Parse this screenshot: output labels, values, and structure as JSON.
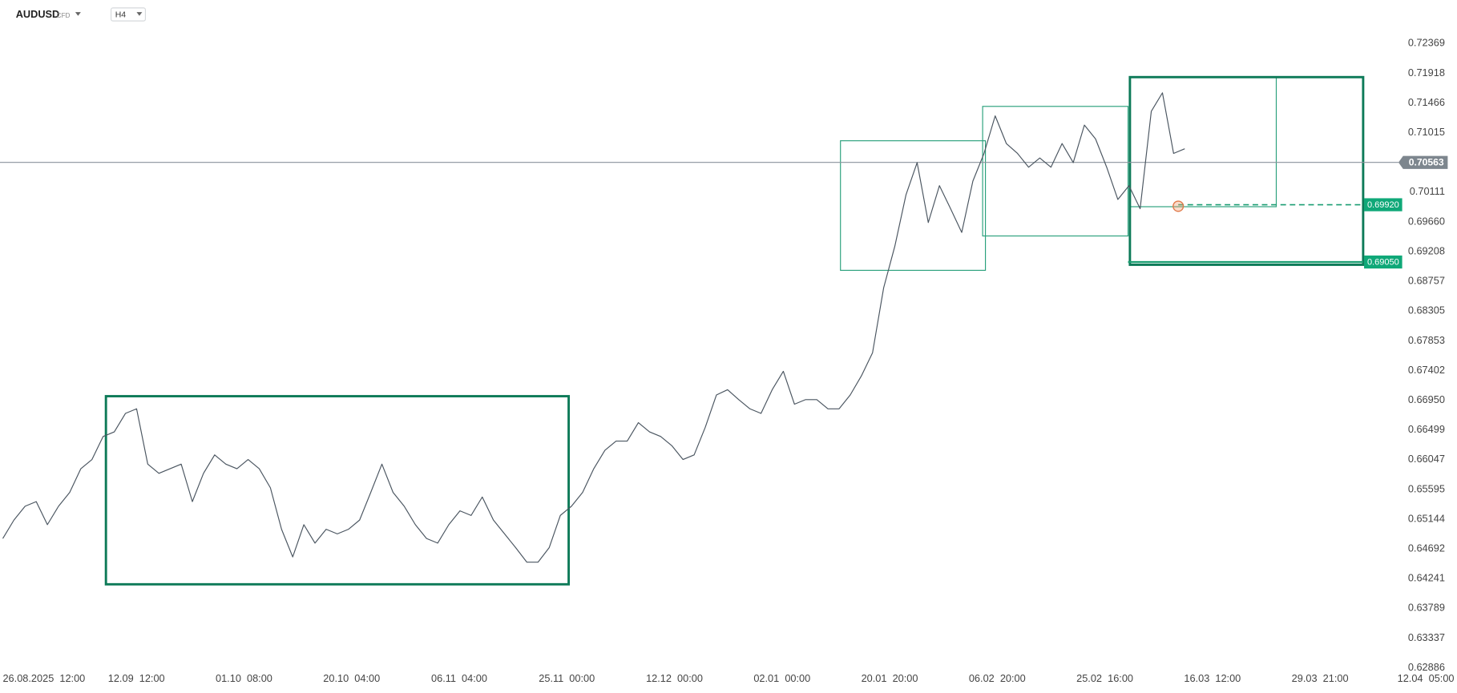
{
  "chart_data": {
    "type": "line",
    "symbol": "AUDUSD",
    "instrument_type": "CFD",
    "timeframe": "H4",
    "x_labels": [
      "26.08.2025  12:00",
      "12.09  12:00",
      "01.10  08:00",
      "20.10  04:00",
      "06.11  04:00",
      "25.11  00:00",
      "12.12  00:00",
      "02.01  00:00",
      "20.01  20:00",
      "06.02  20:00",
      "25.02  16:00",
      "16.03  12:00",
      "29.03  21:00",
      "12.04  05:00"
    ],
    "values": [
      0.6485,
      0.6513,
      0.6534,
      0.6541,
      0.6506,
      0.6534,
      0.6555,
      0.6591,
      0.6605,
      0.664,
      0.6647,
      0.6675,
      0.6682,
      0.6598,
      0.6584,
      0.6591,
      0.6598,
      0.6541,
      0.6584,
      0.6612,
      0.6598,
      0.6591,
      0.6605,
      0.6591,
      0.6562,
      0.6499,
      0.6457,
      0.6506,
      0.6478,
      0.6499,
      0.6492,
      0.6499,
      0.6513,
      0.6555,
      0.6598,
      0.6555,
      0.6534,
      0.6506,
      0.6485,
      0.6478,
      0.6506,
      0.6527,
      0.652,
      0.6548,
      0.6513,
      0.6492,
      0.6471,
      0.6449,
      0.6449,
      0.6471,
      0.652,
      0.6534,
      0.6555,
      0.6591,
      0.6619,
      0.6633,
      0.6633,
      0.6661,
      0.6647,
      0.664,
      0.6626,
      0.6605,
      0.6612,
      0.6654,
      0.6703,
      0.6711,
      0.6696,
      0.6682,
      0.6675,
      0.6711,
      0.6739,
      0.6689,
      0.6696,
      0.6696,
      0.6682,
      0.6682,
      0.6703,
      0.6732,
      0.6767,
      0.6866,
      0.6929,
      0.7007,
      0.7056,
      0.6965,
      0.7021,
      0.6986,
      0.695,
      0.7028,
      0.707,
      0.7127,
      0.7085,
      0.707,
      0.7049,
      0.7063,
      0.7049,
      0.7085,
      0.7056,
      0.7113,
      0.7092,
      0.7049,
      0.7,
      0.7021,
      0.6986,
      0.7134,
      0.7162,
      0.707,
      0.7077
    ],
    "color": "#4a5560",
    "ylim": [
      0.6287,
      0.7303
    ],
    "yticks": [
      0.72369,
      0.71918,
      0.71466,
      0.71015,
      0.70111,
      {
        "value": 0.6966,
        "label": "0.69660"
      },
      0.69208,
      0.68757,
      0.68305,
      0.67853,
      0.67402,
      {
        "value": 0.6695,
        "label": "0.66950"
      },
      0.66499,
      0.66047,
      0.65595,
      0.65144,
      0.64692,
      0.64241,
      0.63789,
      0.63337,
      0.62886
    ],
    "grid": false,
    "current_price": 0.70563,
    "levels": [
      {
        "value": 0.6992,
        "label": "0.69920"
      },
      {
        "value": 0.6905,
        "label": "0.69050"
      }
    ]
  }
}
